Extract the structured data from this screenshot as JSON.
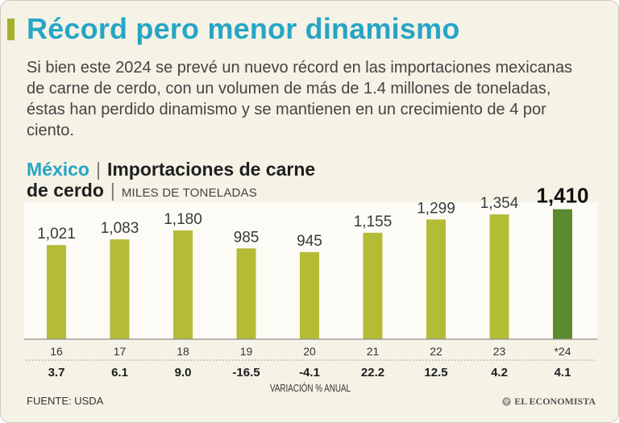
{
  "colors": {
    "background": "#f5f2e6",
    "accent": "#27a5c5",
    "accent_bar": "#a8b12d",
    "text": "#333333"
  },
  "header": {
    "title": "Récord pero menor dinamismo",
    "intro_lines": [
      "Si bien este 2024 se prevé un nuevo récord en las importaciones mexicanas",
      "de carne de cerdo, con un volumen de más de 1.4 millones de toneladas,",
      "éstas han perdido dinamismo y se mantienen en un crecimiento de 4 por",
      "ciento."
    ]
  },
  "chart_data": {
    "type": "bar",
    "country": "México",
    "separator": "|",
    "title_lines": [
      "Importaciones de carne",
      "de cerdo"
    ],
    "unit": "MILES DE TONELADAS",
    "categories": [
      "16",
      "17",
      "18",
      "19",
      "20",
      "21",
      "22",
      "23",
      "*24"
    ],
    "values": [
      1021,
      1083,
      1180,
      985,
      945,
      1155,
      1299,
      1354,
      1410
    ],
    "value_labels": [
      "1,021",
      "1,083",
      "1,180",
      "985",
      "945",
      "1,155",
      "1,299",
      "1,354",
      "1,410"
    ],
    "highlight_category": "*24",
    "variation": {
      "label": "VARIACIÓN % ANUAL",
      "values": [
        3.7,
        6.1,
        9.0,
        -16.5,
        -4.1,
        22.2,
        12.5,
        4.2,
        4.1
      ]
    },
    "ylim": [
      0,
      1500
    ],
    "grid": false,
    "colors": {
      "bar": "#b4bc36",
      "highlight": "#5c8a2f"
    }
  },
  "footer": {
    "source": "FUENTE: USDA",
    "logo": "EL ECONOMISTA"
  }
}
